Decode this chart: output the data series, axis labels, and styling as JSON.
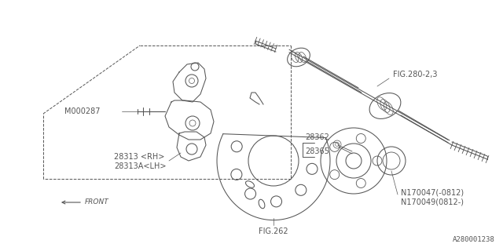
{
  "bg_color": "#ffffff",
  "line_color": "#555555",
  "diagram_id": "A280001238",
  "label_texts": {
    "M000287": "M000287",
    "28313_RH": "28313 <RH>",
    "28313A_LH": "28313A<LH>",
    "28362": "28362",
    "28365": "28365",
    "FIG262": "FIG.262",
    "FIG280": "FIG.280-2,3",
    "N170047": "N170047(-0812)",
    "N170049": "N170049(0812-)",
    "FRONT": "FRONT",
    "diagram_id": "A280001238"
  },
  "font_size": 7,
  "lw": 0.75
}
